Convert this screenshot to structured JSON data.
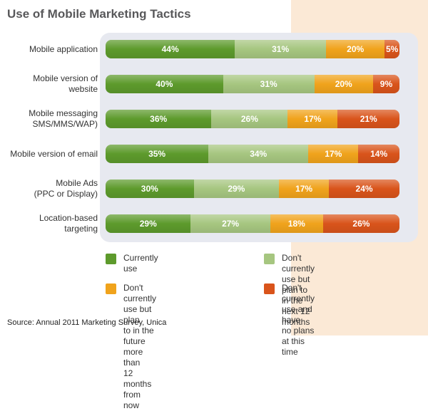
{
  "chart_data": {
    "type": "bar",
    "stacked": true,
    "orientation": "horizontal",
    "title": "Use of Mobile Marketing Tactics",
    "categories": [
      [
        "Mobile application"
      ],
      [
        "Mobile version of",
        "website"
      ],
      [
        "Mobile messaging",
        "SMS/MMS/WAP)"
      ],
      [
        "Mobile version of email"
      ],
      [
        "Mobile Ads",
        "(PPC or Display)"
      ],
      [
        "Location-based",
        "targeting"
      ]
    ],
    "series": [
      {
        "name": "Currently use",
        "color": "#5d9a2c",
        "values": [
          44,
          40,
          36,
          35,
          30,
          29
        ]
      },
      {
        "name": "Don't currently use but plan to in the next 12 months",
        "color": "#a6c680",
        "values": [
          31,
          31,
          26,
          34,
          29,
          27
        ]
      },
      {
        "name": "Don't currently use but plan to in the future more than 12 months from now",
        "color": "#f0a31c",
        "values": [
          20,
          20,
          17,
          17,
          17,
          18
        ]
      },
      {
        "name": "Don't currently use and have no plans at this time",
        "color": "#d9541b",
        "values": [
          5,
          9,
          21,
          14,
          24,
          26
        ]
      }
    ],
    "value_suffix": "%",
    "legend_lines": [
      [
        "Currently use"
      ],
      [
        "Don't currently use but",
        "plan to in the next 12 months"
      ],
      [
        "Don't currently use but plan",
        "to in the future more than",
        "12 months from now"
      ],
      [
        "Don't currently use and have",
        "no plans at this time"
      ]
    ],
    "source": "Source:  Annual 2011 Marketing Survey, Unica"
  }
}
